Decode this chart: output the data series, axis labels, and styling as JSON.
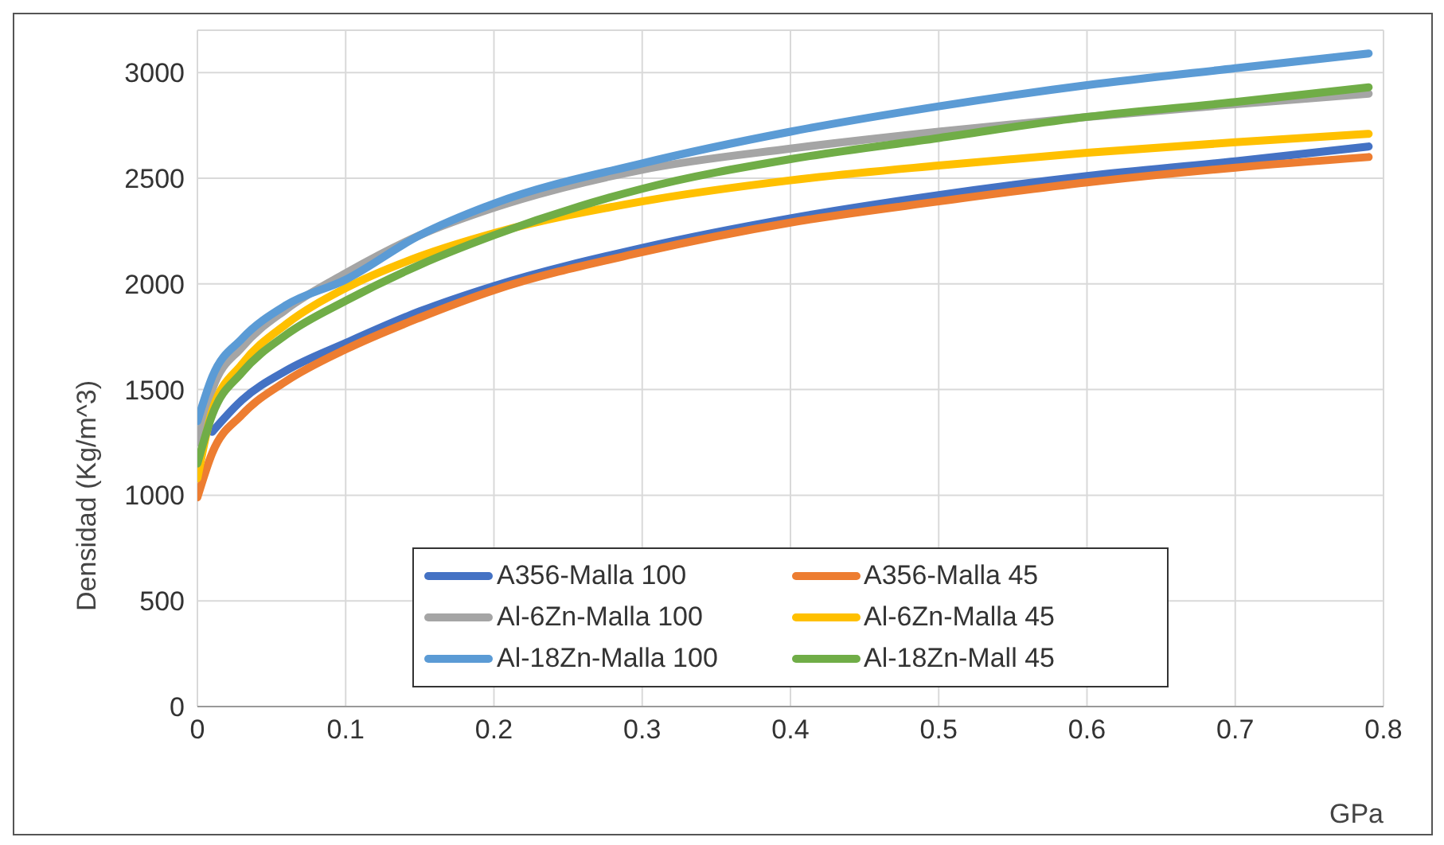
{
  "chart_data": {
    "type": "line",
    "xlabel": "GPa",
    "ylabel": "Densidad (Kg/m^3)",
    "x": [
      0,
      0.01,
      0.03,
      0.06,
      0.1,
      0.15,
      0.2,
      0.3,
      0.4,
      0.5,
      0.6,
      0.7,
      0.79
    ],
    "series": [
      {
        "name": "A356-Malla 100",
        "color": "#4472c4",
        "values": [
          null,
          1300,
          1450,
          1590,
          1720,
          1870,
          1990,
          2170,
          2310,
          2420,
          2510,
          2580,
          2650
        ]
      },
      {
        "name": "A356-Malla 45",
        "color": "#ed7d31",
        "values": [
          990,
          1200,
          1380,
          1540,
          1690,
          1840,
          1970,
          2150,
          2290,
          2390,
          2480,
          2550,
          2600
        ]
      },
      {
        "name": "Al-6Zn-Malla 100",
        "color": "#a5a5a5",
        "values": [
          1250,
          1500,
          1700,
          1880,
          2050,
          2230,
          2360,
          2540,
          2640,
          2720,
          2790,
          2850,
          2900
        ]
      },
      {
        "name": "Al-6Zn-Malla 45",
        "color": "#ffc000",
        "values": [
          1080,
          1400,
          1620,
          1810,
          1980,
          2130,
          2240,
          2390,
          2490,
          2560,
          2620,
          2670,
          2710
        ]
      },
      {
        "name": "Al-18Zn-Malla 100",
        "color": "#5b9bd5",
        "values": [
          1350,
          1560,
          1740,
          1900,
          2020,
          2230,
          2380,
          2570,
          2720,
          2840,
          2940,
          3020,
          3090
        ]
      },
      {
        "name": "Al-18Zn-Mall 45",
        "color": "#70ad47",
        "values": [
          1150,
          1380,
          1580,
          1760,
          1920,
          2090,
          2230,
          2450,
          2590,
          2690,
          2790,
          2860,
          2930
        ]
      }
    ],
    "xlim": [
      0,
      0.8
    ],
    "xticks": [
      0,
      0.1,
      0.2,
      0.3,
      0.4,
      0.5,
      0.6,
      0.7,
      0.8
    ],
    "ylim": [
      0,
      3200
    ],
    "yticks": [
      0,
      500,
      1000,
      1500,
      2000,
      2500,
      3000
    ],
    "grid": true,
    "legend": "bottom",
    "marker": "none",
    "line_style": "solid"
  }
}
